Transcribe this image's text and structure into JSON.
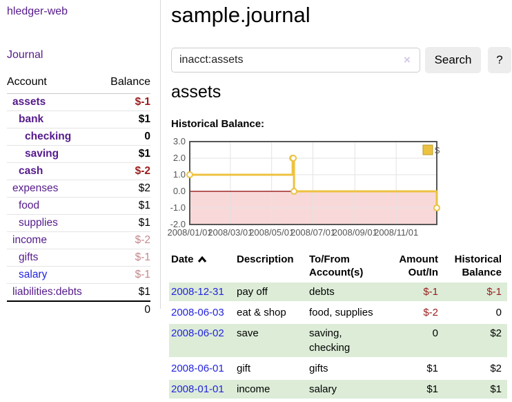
{
  "app": {
    "brand": "hledger-web"
  },
  "sidebar": {
    "nav": {
      "journal": "Journal"
    },
    "accounts": {
      "header": {
        "account": "Account",
        "balance": "Balance"
      },
      "rows": [
        {
          "name": "assets",
          "depth": 1,
          "bold": true,
          "balance": "$-1",
          "tone": "neg-strong",
          "link_color": "purple"
        },
        {
          "name": "bank",
          "depth": 2,
          "bold": true,
          "balance": "$1",
          "tone": "normal",
          "link_color": "purple"
        },
        {
          "name": "checking",
          "depth": 3,
          "bold": true,
          "balance": "0",
          "tone": "normal",
          "link_color": "purple"
        },
        {
          "name": "saving",
          "depth": 3,
          "bold": true,
          "balance": "$1",
          "tone": "normal",
          "link_color": "purple"
        },
        {
          "name": "cash",
          "depth": 2,
          "bold": true,
          "balance": "$-2",
          "tone": "neg-strong",
          "link_color": "purple"
        },
        {
          "name": "expenses",
          "depth": 1,
          "bold": false,
          "balance": "$2",
          "tone": "normal",
          "link_color": "purple"
        },
        {
          "name": "food",
          "depth": 2,
          "bold": false,
          "balance": "$1",
          "tone": "normal",
          "link_color": "purple"
        },
        {
          "name": "supplies",
          "depth": 2,
          "bold": false,
          "balance": "$1",
          "tone": "normal",
          "link_color": "purple"
        },
        {
          "name": "income",
          "depth": 1,
          "bold": false,
          "balance": "$-2",
          "tone": "neg-soft",
          "link_color": "purple"
        },
        {
          "name": "gifts",
          "depth": 2,
          "bold": false,
          "balance": "$-1",
          "tone": "neg-soft",
          "link_color": "purple"
        },
        {
          "name": "salary",
          "depth": 2,
          "bold": false,
          "balance": "$-1",
          "tone": "neg-soft",
          "link_color": "blue"
        },
        {
          "name": "liabilities:debts",
          "depth": 1,
          "bold": false,
          "balance": "$1",
          "tone": "normal",
          "link_color": "purple"
        }
      ],
      "total": "0"
    }
  },
  "main": {
    "title": "sample.journal",
    "search": {
      "value": "inacct:assets",
      "clear_icon": "×",
      "search_button": "Search",
      "help_button": "?"
    },
    "account_title": "assets",
    "chart_label": "Historical Balance:"
  },
  "chart_data": {
    "type": "line",
    "step": true,
    "series": [
      {
        "name": "$",
        "color": "#edc240",
        "points": [
          [
            "2008/01/01",
            1
          ],
          [
            "2008/06/01",
            2
          ],
          [
            "2008/06/02",
            2
          ],
          [
            "2008/06/03",
            0
          ],
          [
            "2008/12/31",
            -1
          ]
        ]
      }
    ],
    "x_ticks": [
      "2008/01/01",
      "2008/03/01",
      "2008/05/01",
      "2008/07/01",
      "2008/09/01",
      "2008/11/01"
    ],
    "y_ticks": [
      3.0,
      2.0,
      1.0,
      0.0,
      -1.0,
      -2.0
    ],
    "xlim": [
      "2008/01/01",
      "2008/12/31"
    ],
    "ylim": [
      -2,
      3
    ],
    "grid": true,
    "legend": {
      "label": "$",
      "position": "top-right"
    },
    "negative_region": true,
    "zero_line": true
  },
  "register": {
    "headers": {
      "date": "Date",
      "description": "Description",
      "accounts": "To/From Account(s)",
      "amount": "Amount Out/In",
      "balance": "Historical Balance"
    },
    "rows": [
      {
        "date": "2008-12-31",
        "description": "pay off",
        "accounts": "debts",
        "amount": "$-1",
        "amount_neg": true,
        "balance": "$-1",
        "balance_neg": true,
        "shaded": true
      },
      {
        "date": "2008-06-03",
        "description": "eat & shop",
        "accounts": "food, supplies",
        "amount": "$-2",
        "amount_neg": true,
        "balance": "0",
        "balance_neg": false,
        "shaded": false
      },
      {
        "date": "2008-06-02",
        "description": "save",
        "accounts": "saving, checking",
        "amount": "0",
        "amount_neg": false,
        "balance": "$2",
        "balance_neg": false,
        "shaded": true
      },
      {
        "date": "2008-06-01",
        "description": "gift",
        "accounts": "gifts",
        "amount": "$1",
        "amount_neg": false,
        "balance": "$2",
        "balance_neg": false,
        "shaded": false
      },
      {
        "date": "2008-01-01",
        "description": "income",
        "accounts": "salary",
        "amount": "$1",
        "amount_neg": false,
        "balance": "$1",
        "balance_neg": false,
        "shaded": true
      }
    ]
  },
  "colors": {
    "purple": "#551a8b",
    "blue": "#2323dd",
    "neg": "#9a1b1b",
    "negsoft": "#c4898d",
    "green": "#dcecd7",
    "yellow": "#edc240",
    "pink": "#f8d8d8",
    "zero": "#8b0000",
    "tick": "#545454",
    "chartborder": "#555555"
  }
}
